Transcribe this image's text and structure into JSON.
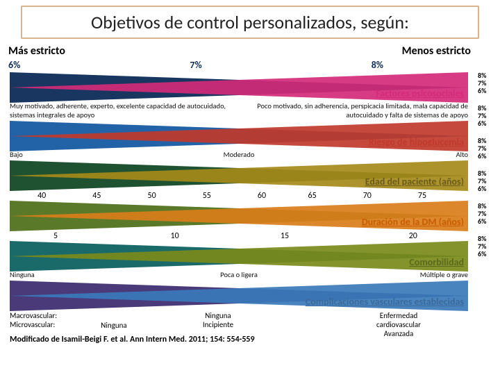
{
  "title": "Objetivos de control personalizados, según:",
  "scale": {
    "left_label": "Más estricto",
    "right_label": "Menos estricto",
    "p6": "6%",
    "p7": "7%",
    "p8": "8%"
  },
  "right_pct": [
    "8%",
    "7%",
    "6%",
    "8%",
    "7%",
    "6%",
    "8%",
    "7%",
    "6%",
    "8%",
    "7%",
    "6%",
    "8%",
    "7%",
    "6%",
    "8%",
    "7%",
    "6%"
  ],
  "wedges": [
    {
      "title": "Factores psicosociales",
      "title_color": "#d42a7a",
      "left_color": "#18365f",
      "right_color": "#d42a7a",
      "sub_left": "Muy motivado, adherente, experto, excelente capacidad de autocuidado, sistemas integrales de apoyo",
      "sub_right": "Poco motivado, sin adherencia, perspicacia limitada, mala capacidad de autocuidado y falta de sistemas de apoyo",
      "ticks": []
    },
    {
      "title": "Riesgo de hipoglucemia",
      "title_color": "#c0392b",
      "left_color": "#2262a6",
      "right_color": "#c0392b",
      "sub_left": "Bajo",
      "sub_mid": "Moderado",
      "sub_right": "Alto",
      "ticks": []
    },
    {
      "title": "Edad del paciente (años)",
      "title_color": "#6b5b1a",
      "left_color": "#1f5230",
      "right_color": "#a58a1a",
      "ticks": [
        {
          "v": "40",
          "p": 7
        },
        {
          "v": "45",
          "p": 19
        },
        {
          "v": "50",
          "p": 31
        },
        {
          "v": "55",
          "p": 43
        },
        {
          "v": "60",
          "p": 55
        },
        {
          "v": "65",
          "p": 66
        },
        {
          "v": "70",
          "p": 78
        },
        {
          "v": "75",
          "p": 90
        }
      ]
    },
    {
      "title": "Duración de la DM (años)",
      "title_color": "#c75c00",
      "left_color": "#5a7a2a",
      "right_color": "#d97d1a",
      "ticks": [
        {
          "v": "5",
          "p": 10
        },
        {
          "v": "10",
          "p": 36
        },
        {
          "v": "15",
          "p": 60
        },
        {
          "v": "20",
          "p": 88
        }
      ]
    },
    {
      "title": "Comorbilidad",
      "title_color": "#5a6a1a",
      "left_color": "#1a6a6a",
      "right_color": "#7a8a1a",
      "sub_left": "Ninguna",
      "sub_mid": "Poca o ligera",
      "sub_right": "Múltiple o grave",
      "ticks": []
    },
    {
      "title": "Complicaciones vasculares establecidas",
      "title_color": "#3a6a9a",
      "left_color": "#4a3a7a",
      "right_color": "#3a7aba",
      "ticks": []
    }
  ],
  "macro": {
    "l1_left": "Macrovascular:",
    "l2_left": "Microvascular:",
    "col2": "Ninguna",
    "col3a": "Ninguna",
    "col3b": "Incipiente",
    "col4a": "Enfermedad cardiovascular",
    "col4b": "Avanzada"
  },
  "citation": "Modificado de Isamil-Beigi F. et al. Ann Intern Med. 2011; 154: 554-559"
}
